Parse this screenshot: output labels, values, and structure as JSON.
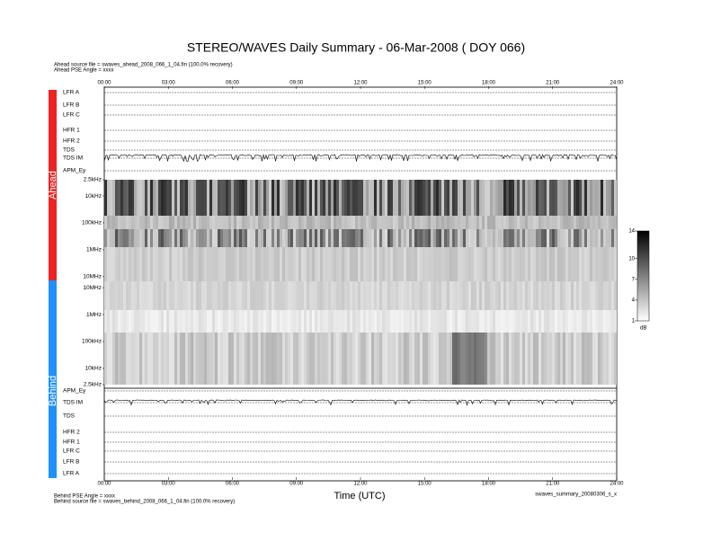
{
  "chart_data": {
    "type": "spectrogram",
    "title": "STEREO/WAVES Daily Summary - 06-Mar-2008 ( DOY 066)",
    "ahead_source": "Ahead source file = swaves_ahead_2008_066_1_04.fin (100.0% recovery)",
    "ahead_angle": "Ahead PSE Angle = xxxx",
    "behind_angle": "Behind PSE Angle = xxxx",
    "behind_source": "Behind source file = swaves_behind_2008_066_1_04.fin (100.0% recovery)",
    "file_id": "swaves_summary_20080306_s_x",
    "xlabel": "Time (UTC)",
    "xlim": [
      0,
      24
    ],
    "xticks": [
      {
        "value": 0,
        "label": "00:00"
      },
      {
        "value": 3,
        "label": "03:00"
      },
      {
        "value": 6,
        "label": "06:00"
      },
      {
        "value": 9,
        "label": "09:00"
      },
      {
        "value": 12,
        "label": "12:00"
      },
      {
        "value": 15,
        "label": "15:00"
      },
      {
        "value": 18,
        "label": "18:00"
      },
      {
        "value": 21,
        "label": "21:00"
      },
      {
        "value": 24,
        "label": "24:00"
      }
    ],
    "spacecraft": [
      "Ahead",
      "Behind"
    ],
    "ahead_rows": [
      "LFR A",
      "LFR B",
      "LFR C",
      "HFR 1",
      "HFR 2",
      "TDS",
      "TDS IM",
      "APM_Ey"
    ],
    "behind_rows": [
      "APM_Ey",
      "TDS IM",
      "TDS",
      "HFR 2",
      "HFR 1",
      "LFR C",
      "LFR B",
      "LFR A"
    ],
    "log_scale": true,
    "ylim": [
      2500,
      16000000
    ],
    "ahead_freq_ticks": [
      {
        "value": 2500,
        "label": "2.5kHz"
      },
      {
        "value": 10000,
        "label": "10kHz"
      },
      {
        "value": 100000,
        "label": "100kHz"
      },
      {
        "value": 1000000,
        "label": "1MHz"
      },
      {
        "value": 10000000,
        "label": "10MHz"
      }
    ],
    "behind_freq_ticks": [
      {
        "value": 10000000,
        "label": "10MHz"
      },
      {
        "value": 1000000,
        "label": "1MHz"
      },
      {
        "value": 100000,
        "label": "100kHz"
      },
      {
        "value": 10000,
        "label": "10kHz"
      },
      {
        "value": 2500,
        "label": "2.5kHz"
      }
    ],
    "colorbar": {
      "lim": [
        1,
        14
      ],
      "ticks": [
        1,
        4,
        7,
        10,
        14
      ],
      "label": "dB"
    }
  }
}
